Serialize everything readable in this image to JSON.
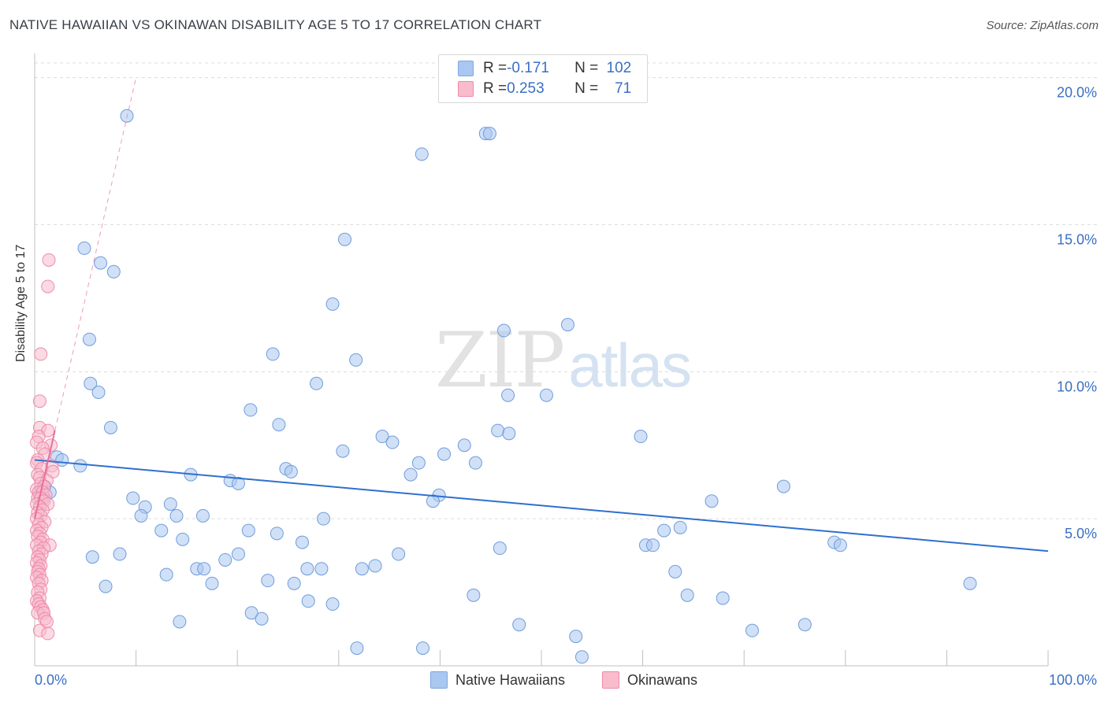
{
  "title": "NATIVE HAWAIIAN VS OKINAWAN DISABILITY AGE 5 TO 17 CORRELATION CHART",
  "source": "Source: ZipAtlas.com",
  "watermark": {
    "zip": "ZIP",
    "atlas": "atlas"
  },
  "legend": {
    "rows": [
      {
        "r_key": "R = ",
        "r_val": "-0.171",
        "n_key": "N = ",
        "n_val": "102",
        "color": "#a9c7f0",
        "border": "#7fa8e0"
      },
      {
        "r_key": "R = ",
        "r_val": "0.253",
        "n_key": "N = ",
        "n_val": "71",
        "color": "#f8bccd",
        "border": "#ee8aa8"
      }
    ]
  },
  "bottom_legend": [
    "Native Hawaiians",
    "Okinawans"
  ],
  "chart_data": {
    "type": "scatter",
    "title": "NATIVE HAWAIIAN VS OKINAWAN DISABILITY AGE 5 TO 17 CORRELATION CHART",
    "xlabel": "",
    "ylabel": "Disability Age 5 to 17",
    "xlim": [
      0,
      100
    ],
    "ylim": [
      0,
      20.5
    ],
    "x_tick_labels": [
      "0.0%",
      "100.0%"
    ],
    "y_ticks": [
      5,
      10,
      15,
      20
    ],
    "y_tick_labels": [
      "5.0%",
      "10.0%",
      "15.0%",
      "20.0%"
    ],
    "grid": true,
    "series": [
      {
        "name": "Native Hawaiians",
        "color": "#a9c7f0",
        "stroke": "#6f9ddb",
        "trend": {
          "x": [
            0,
            100
          ],
          "y": [
            7.0,
            3.9
          ],
          "color": "#2f6fcf"
        },
        "points": [
          [
            9.1,
            18.7
          ],
          [
            44.5,
            18.1
          ],
          [
            44.9,
            18.1
          ],
          [
            38.2,
            17.4
          ],
          [
            30.6,
            14.5
          ],
          [
            4.9,
            14.2
          ],
          [
            6.5,
            13.7
          ],
          [
            7.8,
            13.4
          ],
          [
            29.4,
            12.3
          ],
          [
            46.3,
            11.4
          ],
          [
            52.6,
            11.6
          ],
          [
            5.4,
            11.1
          ],
          [
            23.5,
            10.6
          ],
          [
            31.7,
            10.4
          ],
          [
            5.5,
            9.6
          ],
          [
            6.3,
            9.3
          ],
          [
            27.8,
            9.6
          ],
          [
            46.7,
            9.2
          ],
          [
            50.5,
            9.2
          ],
          [
            21.3,
            8.7
          ],
          [
            7.5,
            8.1
          ],
          [
            24.1,
            8.2
          ],
          [
            45.7,
            8.0
          ],
          [
            46.8,
            7.9
          ],
          [
            59.8,
            7.8
          ],
          [
            34.3,
            7.8
          ],
          [
            35.3,
            7.6
          ],
          [
            42.4,
            7.5
          ],
          [
            30.4,
            7.3
          ],
          [
            40.4,
            7.2
          ],
          [
            2.2,
            7.1
          ],
          [
            2.7,
            7.0
          ],
          [
            37.9,
            6.9
          ],
          [
            43.5,
            6.9
          ],
          [
            4.5,
            6.8
          ],
          [
            24.8,
            6.7
          ],
          [
            25.3,
            6.6
          ],
          [
            15.4,
            6.5
          ],
          [
            37.1,
            6.5
          ],
          [
            19.3,
            6.3
          ],
          [
            20.1,
            6.2
          ],
          [
            73.9,
            6.1
          ],
          [
            1.0,
            6.1
          ],
          [
            0.7,
            6.0
          ],
          [
            1.5,
            5.9
          ],
          [
            0.5,
            5.8
          ],
          [
            0.9,
            5.7
          ],
          [
            9.7,
            5.7
          ],
          [
            39.9,
            5.8
          ],
          [
            39.3,
            5.6
          ],
          [
            66.8,
            5.6
          ],
          [
            10.9,
            5.4
          ],
          [
            13.4,
            5.5
          ],
          [
            10.5,
            5.1
          ],
          [
            14.0,
            5.1
          ],
          [
            16.6,
            5.1
          ],
          [
            28.5,
            5.0
          ],
          [
            63.7,
            4.7
          ],
          [
            62.1,
            4.6
          ],
          [
            12.5,
            4.6
          ],
          [
            21.1,
            4.6
          ],
          [
            23.9,
            4.5
          ],
          [
            14.6,
            4.3
          ],
          [
            26.4,
            4.2
          ],
          [
            78.9,
            4.2
          ],
          [
            79.5,
            4.1
          ],
          [
            60.3,
            4.1
          ],
          [
            61.0,
            4.1
          ],
          [
            45.9,
            4.0
          ],
          [
            5.7,
            3.7
          ],
          [
            8.4,
            3.8
          ],
          [
            20.1,
            3.8
          ],
          [
            35.9,
            3.8
          ],
          [
            18.8,
            3.6
          ],
          [
            16.0,
            3.3
          ],
          [
            16.7,
            3.3
          ],
          [
            26.9,
            3.3
          ],
          [
            28.3,
            3.3
          ],
          [
            32.3,
            3.3
          ],
          [
            33.6,
            3.4
          ],
          [
            13.0,
            3.1
          ],
          [
            63.2,
            3.2
          ],
          [
            23.0,
            2.9
          ],
          [
            25.6,
            2.8
          ],
          [
            17.5,
            2.8
          ],
          [
            7.0,
            2.7
          ],
          [
            92.3,
            2.8
          ],
          [
            43.3,
            2.4
          ],
          [
            64.4,
            2.4
          ],
          [
            67.9,
            2.3
          ],
          [
            27.0,
            2.2
          ],
          [
            29.4,
            2.1
          ],
          [
            21.4,
            1.8
          ],
          [
            22.4,
            1.6
          ],
          [
            14.3,
            1.5
          ],
          [
            47.8,
            1.4
          ],
          [
            76.0,
            1.4
          ],
          [
            70.8,
            1.2
          ],
          [
            53.4,
            1.0
          ],
          [
            31.8,
            0.6
          ],
          [
            38.3,
            0.6
          ],
          [
            54.0,
            0.3
          ]
        ]
      },
      {
        "name": "Okinawans",
        "color": "#f8bccd",
        "stroke": "#ee8aa8",
        "trend": {
          "x": [
            0,
            10
          ],
          "y": [
            5.0,
            20.0
          ],
          "color": "#e8709a",
          "dashed_beyond_x": 2
        },
        "points": [
          [
            1.4,
            13.8
          ],
          [
            1.3,
            12.9
          ],
          [
            0.6,
            10.6
          ],
          [
            0.5,
            9.0
          ],
          [
            0.5,
            8.1
          ],
          [
            1.3,
            8.0
          ],
          [
            0.4,
            7.8
          ],
          [
            0.2,
            7.6
          ],
          [
            1.6,
            7.5
          ],
          [
            0.8,
            7.4
          ],
          [
            1.0,
            7.2
          ],
          [
            0.3,
            7.0
          ],
          [
            0.2,
            6.9
          ],
          [
            1.7,
            6.8
          ],
          [
            0.7,
            6.7
          ],
          [
            1.8,
            6.6
          ],
          [
            0.3,
            6.5
          ],
          [
            0.5,
            6.4
          ],
          [
            1.2,
            6.3
          ],
          [
            0.6,
            6.2
          ],
          [
            0.9,
            6.1
          ],
          [
            0.2,
            6.0
          ],
          [
            0.4,
            5.9
          ],
          [
            0.8,
            5.9
          ],
          [
            1.1,
            5.8
          ],
          [
            0.3,
            5.7
          ],
          [
            0.6,
            5.7
          ],
          [
            0.9,
            5.6
          ],
          [
            1.3,
            5.5
          ],
          [
            0.2,
            5.5
          ],
          [
            0.5,
            5.4
          ],
          [
            0.8,
            5.3
          ],
          [
            0.3,
            5.2
          ],
          [
            0.6,
            5.1
          ],
          [
            0.2,
            5.0
          ],
          [
            1.0,
            4.9
          ],
          [
            0.4,
            4.8
          ],
          [
            0.7,
            4.7
          ],
          [
            0.2,
            4.6
          ],
          [
            0.5,
            4.5
          ],
          [
            0.3,
            4.4
          ],
          [
            0.8,
            4.3
          ],
          [
            0.6,
            4.2
          ],
          [
            1.5,
            4.1
          ],
          [
            0.2,
            4.1
          ],
          [
            0.9,
            4.0
          ],
          [
            0.4,
            3.9
          ],
          [
            0.7,
            3.8
          ],
          [
            0.3,
            3.7
          ],
          [
            0.5,
            3.6
          ],
          [
            0.2,
            3.5
          ],
          [
            0.6,
            3.4
          ],
          [
            0.4,
            3.3
          ],
          [
            0.3,
            3.2
          ],
          [
            0.5,
            3.1
          ],
          [
            0.2,
            3.0
          ],
          [
            0.7,
            2.9
          ],
          [
            0.4,
            2.8
          ],
          [
            0.6,
            2.6
          ],
          [
            0.3,
            2.5
          ],
          [
            0.5,
            2.3
          ],
          [
            0.2,
            2.2
          ],
          [
            0.4,
            2.1
          ],
          [
            0.6,
            2.0
          ],
          [
            0.8,
            1.9
          ],
          [
            0.3,
            1.8
          ],
          [
            0.9,
            1.8
          ],
          [
            1.0,
            1.6
          ],
          [
            1.2,
            1.5
          ],
          [
            0.5,
            1.2
          ],
          [
            1.3,
            1.1
          ]
        ]
      }
    ]
  }
}
